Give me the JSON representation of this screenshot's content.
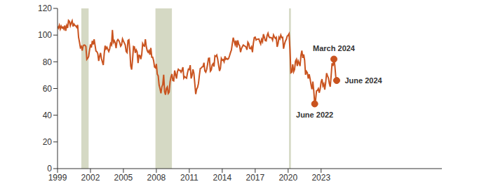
{
  "chart_data": {
    "type": "line",
    "color": "#c9531f",
    "grid": false,
    "xlim": [
      1999,
      2034
    ],
    "xticks": [
      1999,
      2002,
      2005,
      2008,
      2011,
      2014,
      2017,
      2020,
      2023
    ],
    "ylim": [
      0,
      120
    ],
    "yticks": [
      0,
      20,
      40,
      60,
      80,
      100,
      120
    ],
    "bands": {
      "color": "#d5d9c4",
      "ranges": [
        [
          2001.167,
          2001.833
        ],
        [
          2007.917,
          2009.417
        ],
        [
          2020.083,
          2020.25
        ]
      ]
    },
    "annotations": [
      {
        "text": "March 2024",
        "x": 2024.167,
        "y": 82
      },
      {
        "text": "June 2024",
        "x": 2024.417,
        "y": 66
      },
      {
        "text": "June 2022",
        "x": 2022.417,
        "y": 48.5
      }
    ],
    "x": [
      1999,
      1999.083,
      1999.167,
      1999.25,
      1999.333,
      1999.417,
      1999.5,
      1999.583,
      1999.667,
      1999.75,
      1999.833,
      1999.917,
      2000,
      2000.083,
      2000.167,
      2000.25,
      2000.333,
      2000.417,
      2000.5,
      2000.583,
      2000.667,
      2000.75,
      2000.833,
      2000.917,
      2001,
      2001.083,
      2001.167,
      2001.25,
      2001.333,
      2001.417,
      2001.5,
      2001.583,
      2001.667,
      2001.75,
      2001.833,
      2001.917,
      2002,
      2002.083,
      2002.167,
      2002.25,
      2002.333,
      2002.417,
      2002.5,
      2002.583,
      2002.667,
      2002.75,
      2002.833,
      2002.917,
      2003,
      2003.083,
      2003.167,
      2003.25,
      2003.333,
      2003.417,
      2003.5,
      2003.583,
      2003.667,
      2003.75,
      2003.833,
      2003.917,
      2004,
      2004.083,
      2004.167,
      2004.25,
      2004.333,
      2004.417,
      2004.5,
      2004.583,
      2004.667,
      2004.75,
      2004.833,
      2004.917,
      2005,
      2005.083,
      2005.167,
      2005.25,
      2005.333,
      2005.417,
      2005.5,
      2005.583,
      2005.667,
      2005.75,
      2005.833,
      2005.917,
      2006,
      2006.083,
      2006.167,
      2006.25,
      2006.333,
      2006.417,
      2006.5,
      2006.583,
      2006.667,
      2006.75,
      2006.833,
      2006.917,
      2007,
      2007.083,
      2007.167,
      2007.25,
      2007.333,
      2007.417,
      2007.5,
      2007.583,
      2007.667,
      2007.75,
      2007.833,
      2007.917,
      2008,
      2008.083,
      2008.167,
      2008.25,
      2008.333,
      2008.417,
      2008.5,
      2008.583,
      2008.667,
      2008.75,
      2008.833,
      2008.917,
      2009,
      2009.083,
      2009.167,
      2009.25,
      2009.333,
      2009.417,
      2009.5,
      2009.583,
      2009.667,
      2009.75,
      2009.833,
      2009.917,
      2010,
      2010.083,
      2010.167,
      2010.25,
      2010.333,
      2010.417,
      2010.5,
      2010.583,
      2010.667,
      2010.75,
      2010.833,
      2010.917,
      2011,
      2011.083,
      2011.167,
      2011.25,
      2011.333,
      2011.417,
      2011.5,
      2011.583,
      2011.667,
      2011.75,
      2011.833,
      2011.917,
      2012,
      2012.083,
      2012.167,
      2012.25,
      2012.333,
      2012.417,
      2012.5,
      2012.583,
      2012.667,
      2012.75,
      2012.833,
      2012.917,
      2013,
      2013.083,
      2013.167,
      2013.25,
      2013.333,
      2013.417,
      2013.5,
      2013.583,
      2013.667,
      2013.75,
      2013.833,
      2013.917,
      2014,
      2014.083,
      2014.167,
      2014.25,
      2014.333,
      2014.417,
      2014.5,
      2014.583,
      2014.667,
      2014.75,
      2014.833,
      2014.917,
      2015,
      2015.083,
      2015.167,
      2015.25,
      2015.333,
      2015.417,
      2015.5,
      2015.583,
      2015.667,
      2015.75,
      2015.833,
      2015.917,
      2016,
      2016.083,
      2016.167,
      2016.25,
      2016.333,
      2016.417,
      2016.5,
      2016.583,
      2016.667,
      2016.75,
      2016.833,
      2016.917,
      2017,
      2017.083,
      2017.167,
      2017.25,
      2017.333,
      2017.417,
      2017.5,
      2017.583,
      2017.667,
      2017.75,
      2017.833,
      2017.917,
      2018,
      2018.083,
      2018.167,
      2018.25,
      2018.333,
      2018.417,
      2018.5,
      2018.583,
      2018.667,
      2018.75,
      2018.833,
      2018.917,
      2019,
      2019.083,
      2019.167,
      2019.25,
      2019.333,
      2019.417,
      2019.5,
      2019.583,
      2019.667,
      2019.75,
      2019.833,
      2019.917,
      2020,
      2020.083,
      2020.167,
      2020.25,
      2020.333,
      2020.417,
      2020.5,
      2020.583,
      2020.667,
      2020.75,
      2020.833,
      2020.917,
      2021,
      2021.083,
      2021.167,
      2021.25,
      2021.333,
      2021.417,
      2021.5,
      2021.583,
      2021.667,
      2021.75,
      2021.833,
      2021.917,
      2022,
      2022.083,
      2022.167,
      2022.25,
      2022.333,
      2022.417,
      2022.5,
      2022.583,
      2022.667,
      2022.75,
      2022.833,
      2022.917,
      2023,
      2023.083,
      2023.167,
      2023.25,
      2023.333,
      2023.417,
      2023.5,
      2023.583,
      2023.667,
      2023.75,
      2023.833,
      2023.917,
      2024,
      2024.083,
      2024.167,
      2024.25,
      2024.333,
      2024.417
    ],
    "values": [
      106.5,
      105.2,
      107.4,
      104.6,
      106.8,
      105.3,
      106.0,
      104.5,
      107.2,
      103.2,
      107.2,
      105.4,
      111.0,
      110.3,
      107.1,
      109.2,
      110.7,
      106.4,
      108.3,
      107.3,
      106.8,
      105.8,
      107.6,
      98.4,
      94.7,
      90.6,
      91.5,
      88.4,
      92.0,
      92.6,
      92.4,
      91.5,
      81.8,
      82.7,
      83.9,
      88.8,
      93.0,
      90.7,
      95.7,
      93.0,
      96.9,
      92.4,
      88.1,
      87.6,
      86.1,
      80.6,
      84.2,
      86.7,
      82.4,
      79.9,
      77.6,
      86.0,
      92.1,
      89.7,
      90.9,
      89.3,
      87.7,
      89.6,
      93.7,
      92.6,
      103.8,
      94.4,
      95.8,
      94.2,
      90.2,
      95.6,
      96.7,
      95.9,
      94.2,
      91.7,
      92.8,
      97.1,
      95.5,
      94.1,
      92.6,
      87.7,
      86.9,
      96.0,
      96.5,
      89.1,
      76.9,
      74.2,
      81.6,
      91.5,
      91.2,
      86.7,
      88.9,
      87.4,
      79.1,
      84.9,
      84.7,
      82.0,
      85.4,
      93.6,
      92.1,
      91.7,
      96.9,
      91.3,
      88.4,
      87.1,
      88.3,
      85.3,
      90.4,
      83.4,
      83.4,
      80.9,
      76.1,
      75.5,
      78.4,
      70.8,
      69.5,
      62.6,
      59.8,
      56.4,
      61.2,
      63.0,
      70.3,
      57.6,
      55.3,
      60.1,
      61.2,
      56.3,
      57.3,
      65.1,
      68.7,
      70.8,
      66.0,
      65.7,
      73.5,
      70.6,
      67.4,
      72.5,
      74.4,
      73.6,
      73.6,
      72.2,
      73.6,
      76.0,
      67.8,
      68.9,
      68.2,
      67.7,
      71.6,
      74.5,
      74.2,
      77.5,
      67.5,
      69.8,
      74.3,
      71.5,
      63.7,
      55.8,
      59.5,
      60.8,
      63.7,
      69.9,
      75.0,
      75.3,
      76.2,
      76.4,
      79.3,
      73.2,
      72.3,
      74.3,
      78.3,
      82.6,
      82.7,
      72.9,
      73.8,
      77.6,
      78.6,
      76.4,
      84.5,
      84.1,
      85.1,
      82.1,
      77.5,
      73.2,
      75.1,
      82.5,
      81.2,
      81.6,
      80.0,
      84.1,
      81.9,
      82.5,
      81.8,
      82.5,
      84.6,
      86.9,
      88.8,
      93.6,
      98.1,
      95.4,
      93.0,
      95.9,
      90.7,
      96.1,
      93.1,
      91.9,
      87.2,
      90.0,
      91.3,
      92.6,
      92.0,
      91.7,
      91.0,
      89.0,
      94.7,
      93.5,
      90.0,
      89.8,
      91.2,
      87.2,
      93.8,
      98.2,
      98.5,
      96.3,
      96.9,
      97.0,
      97.1,
      95.0,
      93.4,
      96.8,
      95.1,
      100.7,
      98.5,
      95.9,
      95.7,
      99.7,
      101.4,
      98.8,
      98.0,
      98.2,
      97.9,
      96.2,
      100.1,
      98.6,
      97.5,
      98.3,
      91.2,
      93.8,
      98.4,
      97.2,
      100.0,
      98.2,
      98.4,
      89.8,
      93.2,
      95.5,
      96.8,
      99.3,
      99.8,
      101.0,
      89.1,
      71.8,
      72.3,
      78.1,
      72.5,
      74.1,
      80.4,
      81.8,
      76.9,
      80.7,
      79.0,
      76.8,
      84.9,
      88.3,
      82.9,
      85.5,
      81.2,
      70.3,
      72.8,
      71.7,
      67.4,
      70.6,
      67.2,
      62.8,
      59.4,
      65.2,
      58.4,
      48.5,
      51.5,
      58.2,
      58.6,
      59.9,
      56.8,
      59.7,
      64.9,
      67.0,
      62.0,
      63.5,
      59.2,
      64.2,
      71.5,
      69.5,
      67.9,
      63.8,
      61.3,
      69.7,
      79.0,
      76.9,
      82.0,
      77.2,
      69.1,
      66.0
    ]
  }
}
